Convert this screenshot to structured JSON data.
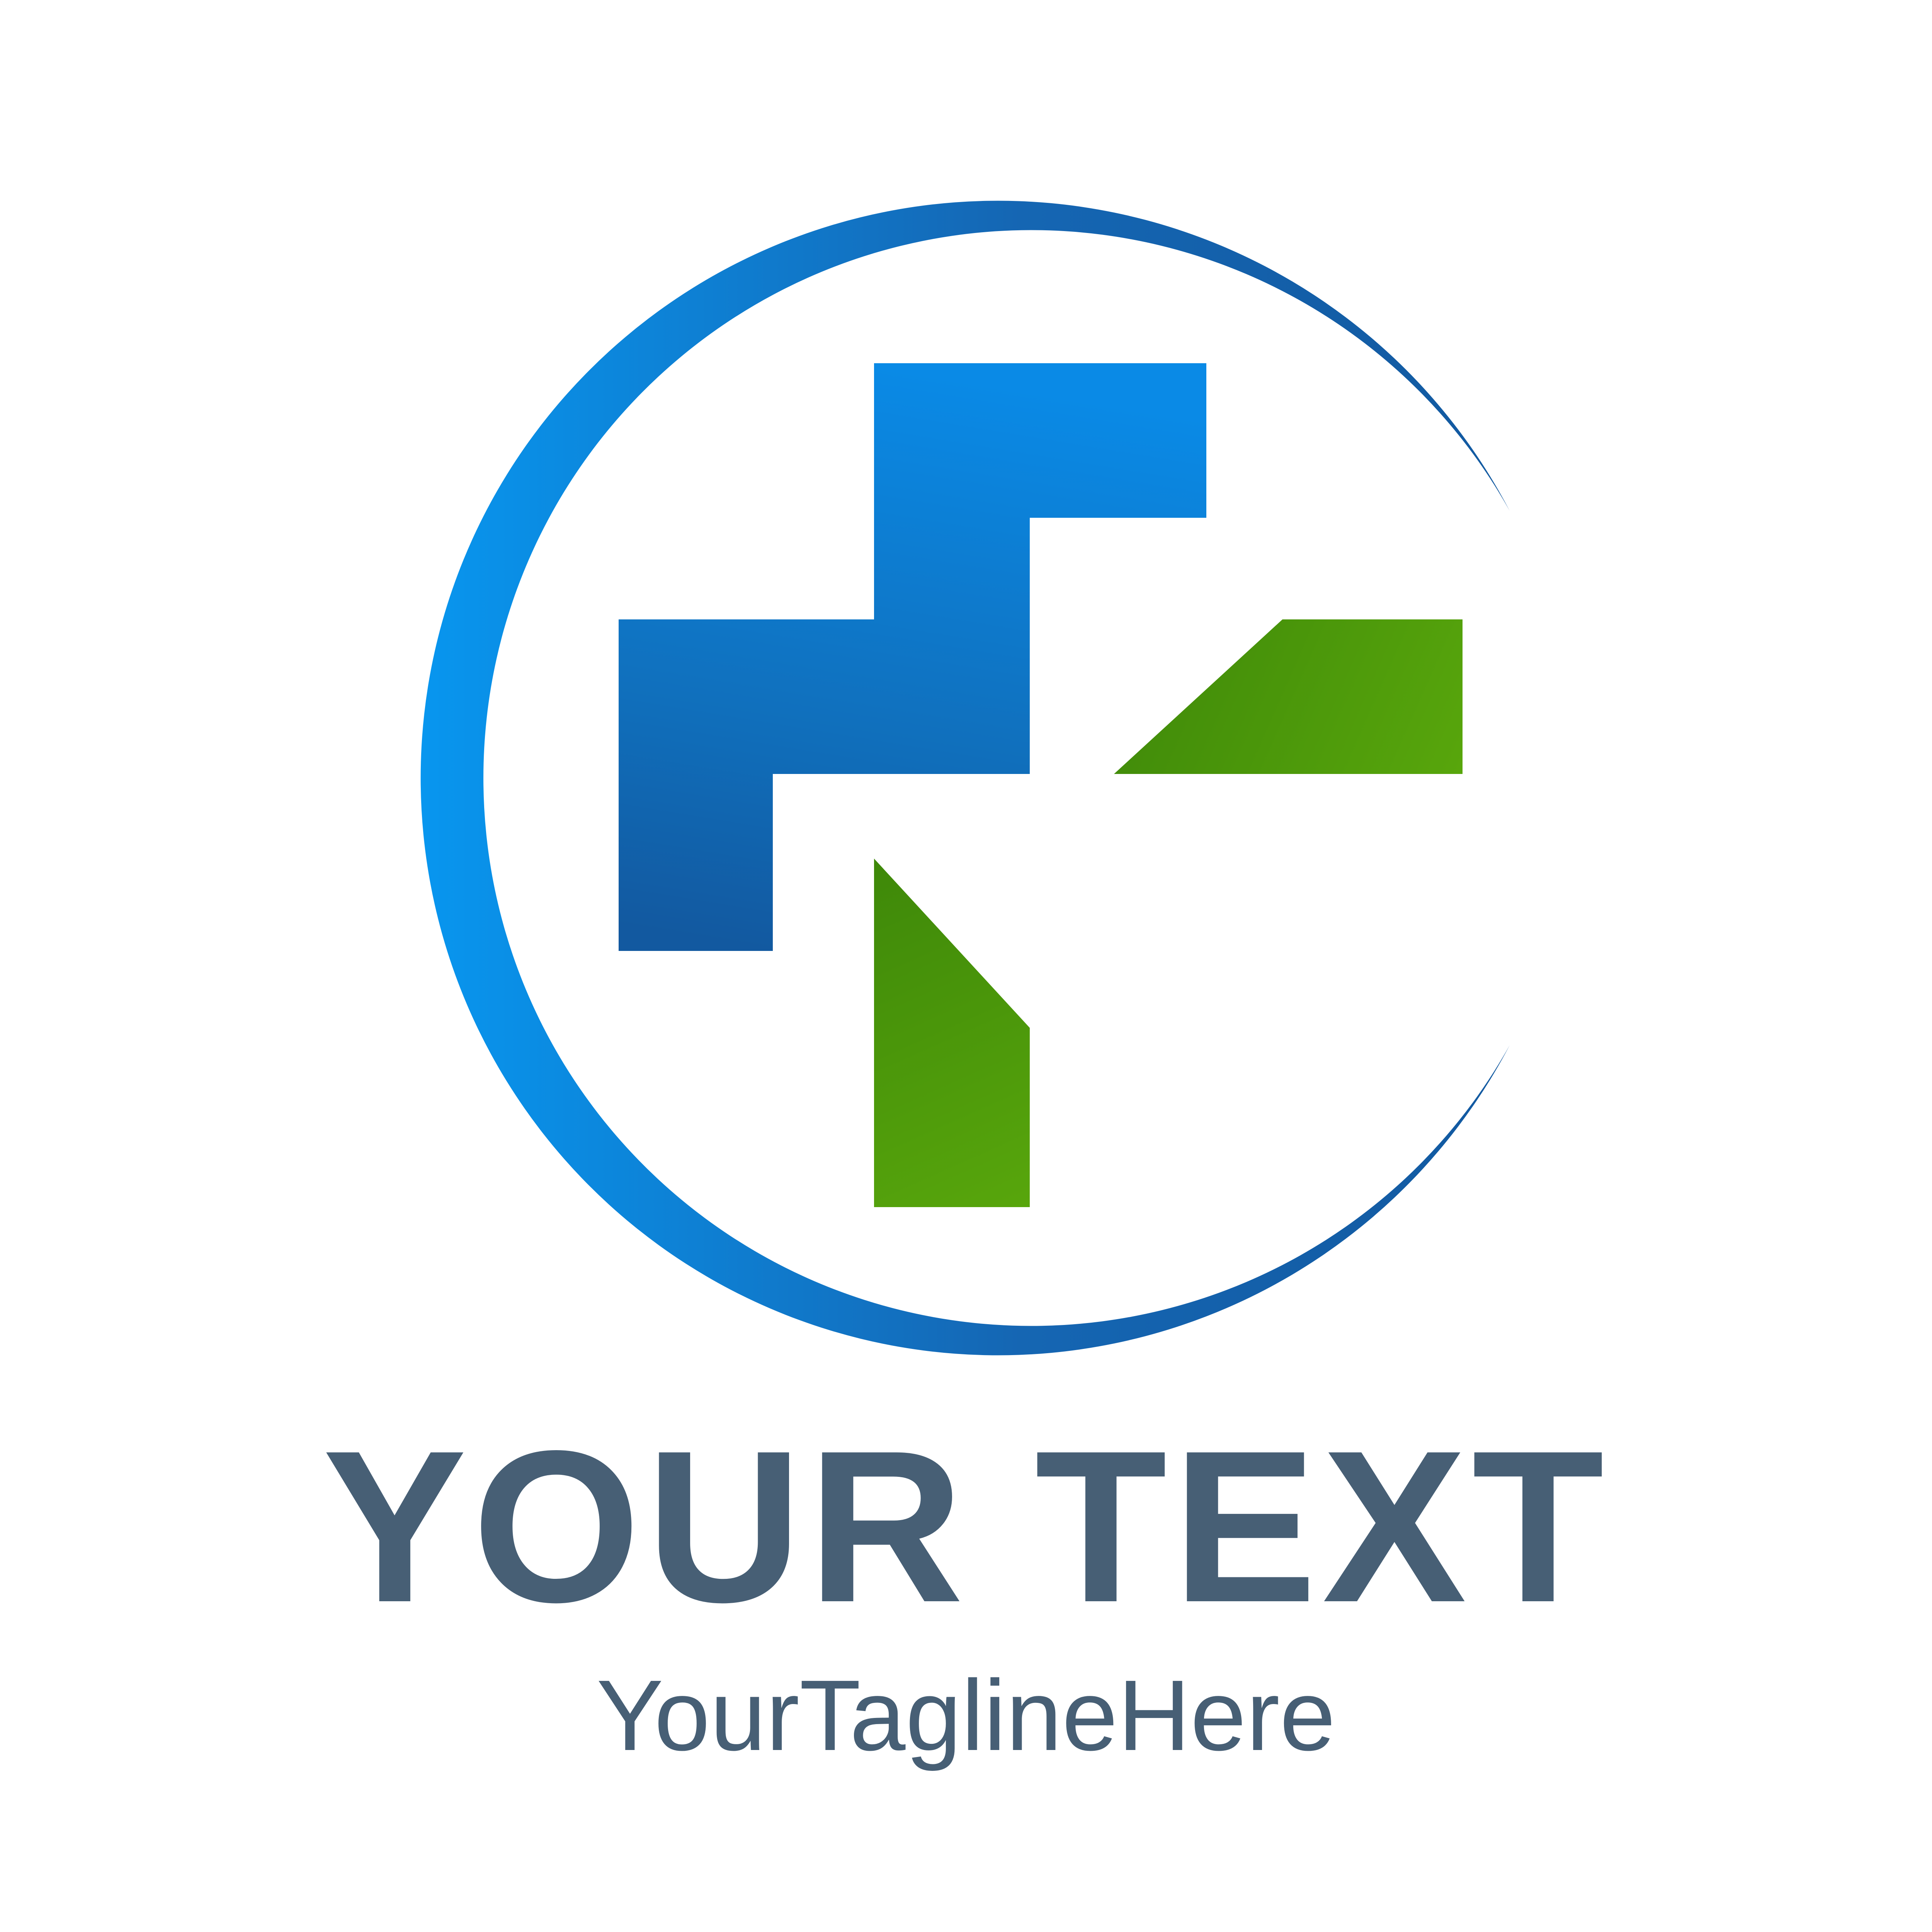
{
  "logo": {
    "brand_name": "YOUR TEXT",
    "tagline": "YourTaglineHere",
    "text_color": "#475f75",
    "blue_light": "#0896ef",
    "blue_dark": "#1259a0",
    "green_dark": "#3e8809",
    "green_light": "#58a60c",
    "background": "#ffffff"
  }
}
